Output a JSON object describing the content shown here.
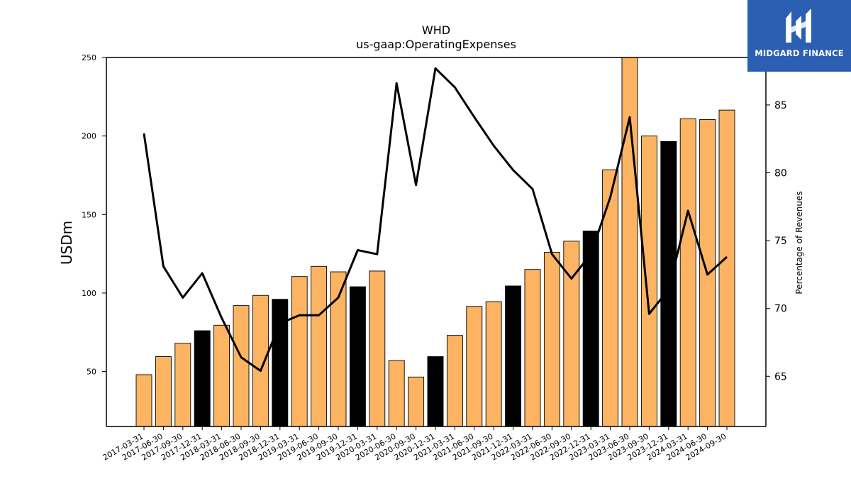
{
  "brand": {
    "name": "MIDGARD FINANCE",
    "logo_icon": "midgard-logo-icon",
    "color": "#2b5fb4"
  },
  "chart_data": {
    "type": "bar",
    "title": "WHD",
    "subtitle": "us-gaap:OperatingExpenses",
    "ylabel": "USDm",
    "y2label": "Percentage of Revenues",
    "ylim": [
      15,
      250
    ],
    "y2lim": [
      61.3,
      88.5
    ],
    "yticks": [
      50,
      100,
      150,
      200,
      250
    ],
    "y2ticks": [
      65,
      70,
      75,
      80,
      85
    ],
    "categories": [
      "2017-03-31",
      "2017-06-30",
      "2017-09-30",
      "2017-12-31",
      "2018-03-31",
      "2018-06-30",
      "2018-09-30",
      "2018-12-31",
      "2019-03-31",
      "2019-06-30",
      "2019-09-30",
      "2019-12-31",
      "2020-03-31",
      "2020-06-30",
      "2020-09-30",
      "2020-12-31",
      "2021-03-31",
      "2021-06-30",
      "2021-09-30",
      "2021-12-31",
      "2022-03-31",
      "2022-06-30",
      "2022-09-30",
      "2022-12-31",
      "2023-03-31",
      "2023-06-30",
      "2023-09-30",
      "2023-12-31",
      "2024-03-31",
      "2024-06-30",
      "2024-09-30"
    ],
    "series": [
      {
        "axis": "left",
        "kind": "bar",
        "values": [
          48,
          59.5,
          68,
          76,
          79.5,
          92,
          98.5,
          96,
          110.5,
          117,
          113.5,
          104,
          114,
          57,
          46.5,
          59.5,
          73,
          91.5,
          94.5,
          104.5,
          115,
          126,
          133,
          139.5,
          178.5,
          250,
          200,
          196.5,
          211,
          210.5,
          216.5
        ],
        "highlight": [
          false,
          false,
          false,
          true,
          false,
          false,
          false,
          true,
          false,
          false,
          false,
          true,
          false,
          false,
          false,
          true,
          false,
          false,
          false,
          true,
          false,
          false,
          false,
          true,
          false,
          false,
          false,
          true,
          false,
          false,
          false
        ]
      },
      {
        "axis": "right",
        "kind": "line",
        "values": [
          82.9,
          73.1,
          70.8,
          72.6,
          69.3,
          66.4,
          65.4,
          68.9,
          69.5,
          69.5,
          70.8,
          74.3,
          74.0,
          86.6,
          79.1,
          87.7,
          86.3,
          84.1,
          82.0,
          80.2,
          78.8,
          74.0,
          72.2,
          74.0,
          78.2,
          84.1,
          69.6,
          71.4,
          77.2,
          72.5,
          73.8
        ]
      }
    ],
    "colors": {
      "bar": "#fdb462",
      "bar_highlight": "#000000",
      "line": "#000000"
    },
    "grid": false,
    "legend": "none"
  }
}
